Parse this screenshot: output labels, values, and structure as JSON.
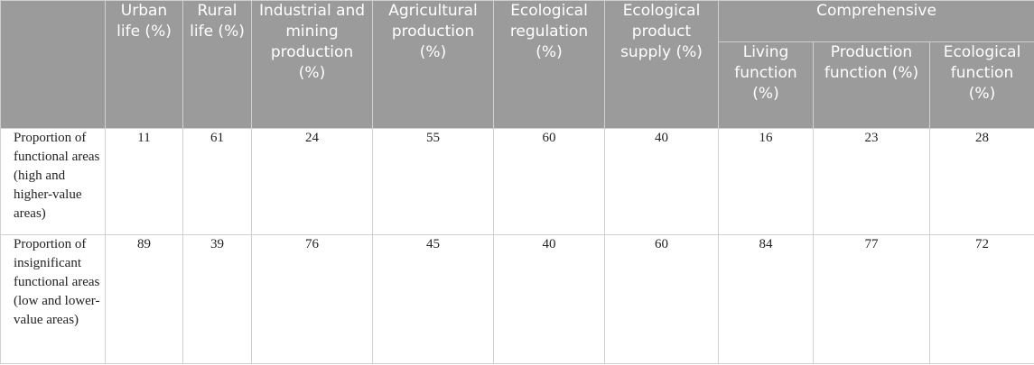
{
  "table": {
    "group_header": "Comprehensive",
    "columns": [
      "",
      "Urban life (%)",
      "Rural life (%)",
      "Industrial and mining production (%)",
      "Agricultural production (%)",
      "Ecological regulation (%)",
      "Ecological product supply (%)"
    ],
    "sub_columns": [
      "Living function (%)",
      "Production function (%)",
      "Ecological function (%)"
    ],
    "rows": [
      {
        "label": "Proportion of functional areas (high and higher-value areas)",
        "values": [
          "11",
          "61",
          "24",
          "55",
          "60",
          "40",
          "16",
          "23",
          "28"
        ]
      },
      {
        "label": "Proportion of insignificant functional areas (low and lower-value areas)",
        "values": [
          "89",
          "39",
          "76",
          "45",
          "40",
          "60",
          "84",
          "77",
          "72"
        ]
      }
    ]
  }
}
